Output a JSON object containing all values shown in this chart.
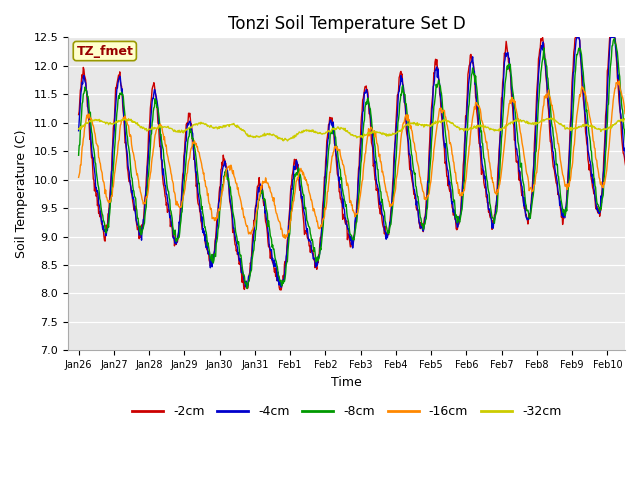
{
  "title": "Tonzi Soil Temperature Set D",
  "xlabel": "Time",
  "ylabel": "Soil Temperature (C)",
  "ylim": [
    7.0,
    12.5
  ],
  "yticks": [
    7.0,
    7.5,
    8.0,
    8.5,
    9.0,
    9.5,
    10.0,
    10.5,
    11.0,
    11.5,
    12.0,
    12.5
  ],
  "xtick_labels": [
    "Jan 26",
    "Jan 27",
    "Jan 28",
    "Jan 29",
    "Jan 30",
    "Jan 31",
    "Feb 1",
    "Feb 2",
    "Feb 3",
    "Feb 4",
    "Feb 5",
    "Feb 6",
    "Feb 7",
    "Feb 8",
    "Feb 9",
    "Feb 10"
  ],
  "legend_labels": [
    "-2cm",
    "-4cm",
    "-8cm",
    "-16cm",
    "-32cm"
  ],
  "legend_colors": [
    "#cc0000",
    "#0000cc",
    "#009900",
    "#ff8800",
    "#cccc00"
  ],
  "line_width": 1.0,
  "annotation_text": "TZ_fmet",
  "annotation_color": "#990000",
  "annotation_bg": "#ffffcc",
  "annotation_edge": "#999900",
  "plot_bg_color": "#e8e8e8",
  "grid_color": "#ffffff",
  "title_fontsize": 12,
  "n_points": 960,
  "days": 16
}
